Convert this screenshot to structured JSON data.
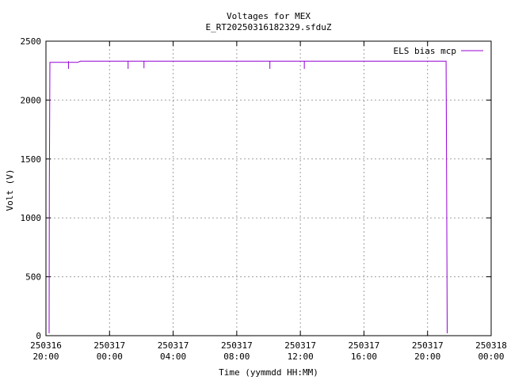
{
  "chart_data": {
    "type": "line",
    "title": "Voltages for MEX",
    "subtitle": "E_RT20250316182329.sfduZ",
    "xlabel": "Time (yymmdd HH:MM)",
    "ylabel": "Volt (V)",
    "xlim": [
      "250316 20:00",
      "250318 00:00"
    ],
    "ylim": [
      0,
      2500
    ],
    "grid": true,
    "legend_position": "top-right",
    "x_ticks": [
      {
        "date": "250316",
        "time": "20:00"
      },
      {
        "date": "250317",
        "time": "00:00"
      },
      {
        "date": "250317",
        "time": "04:00"
      },
      {
        "date": "250317",
        "time": "08:00"
      },
      {
        "date": "250317",
        "time": "12:00"
      },
      {
        "date": "250317",
        "time": "16:00"
      },
      {
        "date": "250317",
        "time": "20:00"
      },
      {
        "date": "250318",
        "time": "00:00"
      }
    ],
    "y_ticks": [
      0,
      500,
      1000,
      1500,
      2000,
      2500
    ],
    "series": [
      {
        "name": "ELS bias mcp",
        "color": "#9400d3",
        "points": [
          {
            "t": "250316 20:12",
            "v": 20
          },
          {
            "t": "250316 20:13",
            "v": 1280
          },
          {
            "t": "250316 20:15",
            "v": 2320
          },
          {
            "t": "250316 22:00",
            "v": 2320
          },
          {
            "t": "250316 22:10",
            "v": 2330
          },
          {
            "t": "250317 01:00",
            "v": 2330
          },
          {
            "t": "250317 09:00",
            "v": 2330
          },
          {
            "t": "250317 16:00",
            "v": 2330
          },
          {
            "t": "250317 21:10",
            "v": 2330
          },
          {
            "t": "250317 21:12",
            "v": 1290
          },
          {
            "t": "250317 21:14",
            "v": 20
          }
        ],
        "dips": [
          {
            "t": "250316 21:25",
            "v": 2265
          },
          {
            "t": "250317 01:10",
            "v": 2265
          },
          {
            "t": "250317 02:10",
            "v": 2270
          },
          {
            "t": "250317 10:05",
            "v": 2265
          },
          {
            "t": "250317 12:15",
            "v": 2265
          }
        ]
      }
    ]
  }
}
